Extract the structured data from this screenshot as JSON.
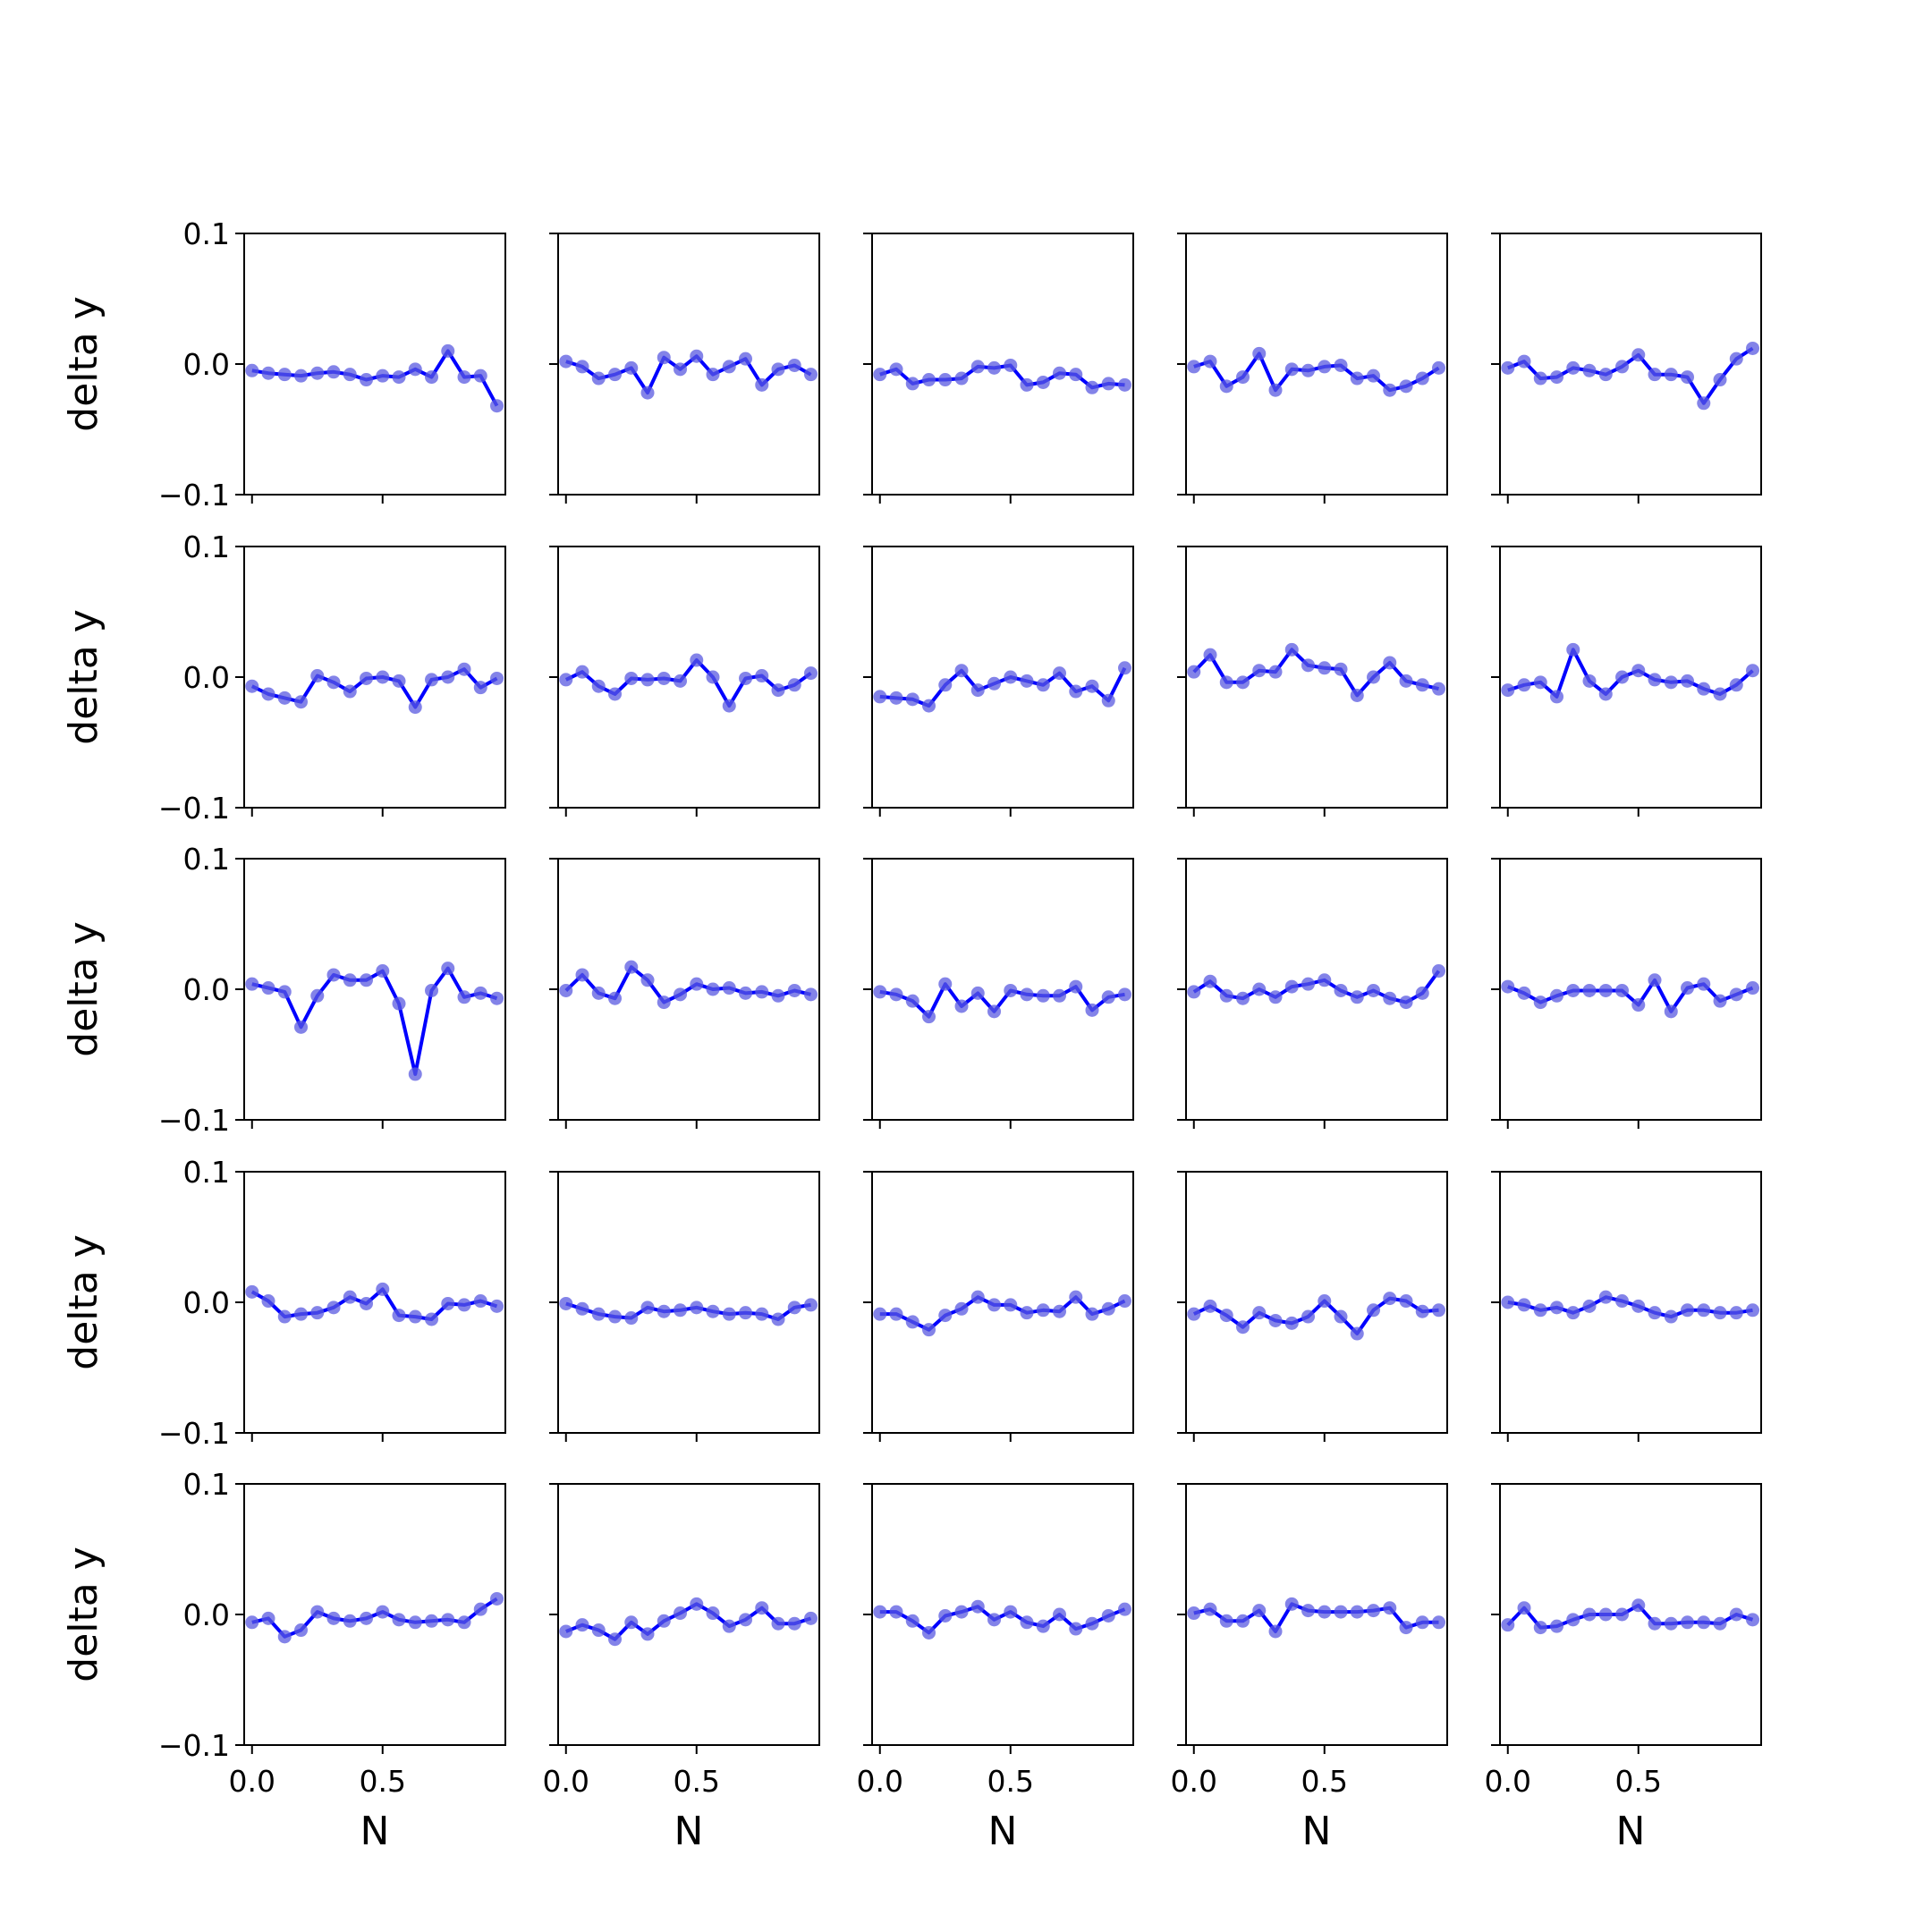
{
  "chart_data": {
    "type": "line",
    "layout": {
      "rows": 5,
      "cols": 5,
      "sharex": true,
      "sharey": true
    },
    "xlabel": "N",
    "ylabel": "delta y",
    "xlim": [
      -0.03,
      0.97
    ],
    "ylim": [
      -0.1,
      0.1
    ],
    "xticks": [
      0.0,
      0.5
    ],
    "xtick_labels": [
      "0.0",
      "0.5"
    ],
    "yticks": [
      -0.1,
      0.0,
      0.1
    ],
    "ytick_labels": [
      "−0.1",
      "0.0",
      "0.1"
    ],
    "x": [
      0.0,
      0.0625,
      0.125,
      0.1875,
      0.25,
      0.3125,
      0.375,
      0.4375,
      0.5,
      0.5625,
      0.625,
      0.6875,
      0.75,
      0.8125,
      0.875,
      0.9375
    ],
    "line_color": "#0000ff",
    "marker_color": "#5a5ae0",
    "panels": [
      [
        -0.005,
        -0.007,
        -0.008,
        -0.009,
        -0.007,
        -0.006,
        -0.008,
        -0.012,
        -0.009,
        -0.01,
        -0.004,
        -0.01,
        0.01,
        -0.01,
        -0.009,
        -0.032
      ],
      [
        0.002,
        -0.002,
        -0.011,
        -0.008,
        -0.003,
        -0.022,
        0.005,
        -0.004,
        0.006,
        -0.008,
        -0.002,
        0.004,
        -0.016,
        -0.004,
        -0.001,
        -0.008
      ],
      [
        -0.008,
        -0.004,
        -0.015,
        -0.012,
        -0.012,
        -0.011,
        -0.002,
        -0.003,
        -0.001,
        -0.016,
        -0.014,
        -0.007,
        -0.008,
        -0.018,
        -0.015,
        -0.016
      ],
      [
        -0.002,
        0.002,
        -0.017,
        -0.01,
        0.008,
        -0.02,
        -0.004,
        -0.005,
        -0.002,
        -0.001,
        -0.011,
        -0.009,
        -0.02,
        -0.017,
        -0.011,
        -0.003
      ],
      [
        -0.003,
        0.002,
        -0.011,
        -0.01,
        -0.003,
        -0.005,
        -0.008,
        -0.002,
        0.007,
        -0.008,
        -0.008,
        -0.01,
        -0.03,
        -0.012,
        0.004,
        0.012
      ],
      [
        -0.007,
        -0.013,
        -0.016,
        -0.019,
        0.001,
        -0.004,
        -0.011,
        -0.001,
        0.0,
        -0.003,
        -0.023,
        -0.002,
        0.0,
        0.006,
        -0.008,
        -0.001
      ],
      [
        -0.002,
        0.004,
        -0.007,
        -0.013,
        -0.001,
        -0.002,
        -0.001,
        -0.003,
        0.013,
        0.0,
        -0.022,
        -0.001,
        0.001,
        -0.01,
        -0.006,
        0.003
      ],
      [
        -0.015,
        -0.016,
        -0.017,
        -0.022,
        -0.006,
        0.005,
        -0.01,
        -0.005,
        0.0,
        -0.003,
        -0.006,
        0.003,
        -0.011,
        -0.007,
        -0.018,
        0.007
      ],
      [
        0.004,
        0.017,
        -0.004,
        -0.004,
        0.005,
        0.004,
        0.021,
        0.009,
        0.007,
        0.006,
        -0.014,
        0.0,
        0.011,
        -0.003,
        -0.006,
        -0.009
      ],
      [
        -0.01,
        -0.006,
        -0.004,
        -0.015,
        0.021,
        -0.003,
        -0.013,
        0.0,
        0.005,
        -0.002,
        -0.004,
        -0.003,
        -0.009,
        -0.013,
        -0.006,
        0.005
      ],
      [
        0.004,
        0.001,
        -0.002,
        -0.029,
        -0.005,
        0.011,
        0.007,
        0.007,
        0.014,
        -0.011,
        -0.065,
        -0.001,
        0.016,
        -0.006,
        -0.003,
        -0.007
      ],
      [
        -0.001,
        0.011,
        -0.003,
        -0.007,
        0.017,
        0.007,
        -0.01,
        -0.004,
        0.004,
        0.0,
        0.001,
        -0.003,
        -0.002,
        -0.005,
        -0.001,
        -0.004
      ],
      [
        -0.002,
        -0.004,
        -0.009,
        -0.021,
        0.004,
        -0.013,
        -0.003,
        -0.017,
        -0.001,
        -0.004,
        -0.005,
        -0.005,
        0.002,
        -0.016,
        -0.006,
        -0.004
      ],
      [
        -0.002,
        0.006,
        -0.005,
        -0.007,
        0.0,
        -0.006,
        0.002,
        0.004,
        0.007,
        -0.001,
        -0.006,
        -0.001,
        -0.007,
        -0.01,
        -0.003,
        0.014
      ],
      [
        0.002,
        -0.003,
        -0.01,
        -0.005,
        -0.001,
        -0.001,
        -0.001,
        -0.001,
        -0.012,
        0.007,
        -0.017,
        0.001,
        0.004,
        -0.009,
        -0.004,
        0.001
      ],
      [
        0.008,
        0.001,
        -0.011,
        -0.009,
        -0.008,
        -0.004,
        0.004,
        -0.001,
        0.01,
        -0.01,
        -0.011,
        -0.013,
        -0.001,
        -0.002,
        0.001,
        -0.003
      ],
      [
        -0.001,
        -0.005,
        -0.009,
        -0.011,
        -0.012,
        -0.004,
        -0.007,
        -0.006,
        -0.004,
        -0.007,
        -0.009,
        -0.008,
        -0.009,
        -0.013,
        -0.004,
        -0.002
      ],
      [
        -0.009,
        -0.009,
        -0.015,
        -0.021,
        -0.01,
        -0.005,
        0.004,
        -0.002,
        -0.002,
        -0.008,
        -0.006,
        -0.007,
        0.004,
        -0.009,
        -0.005,
        0.001
      ],
      [
        -0.009,
        -0.003,
        -0.01,
        -0.019,
        -0.008,
        -0.014,
        -0.016,
        -0.011,
        0.001,
        -0.011,
        -0.024,
        -0.006,
        0.003,
        0.001,
        -0.007,
        -0.006
      ],
      [
        0.0,
        -0.002,
        -0.006,
        -0.004,
        -0.008,
        -0.003,
        0.004,
        0.001,
        -0.003,
        -0.008,
        -0.011,
        -0.006,
        -0.006,
        -0.008,
        -0.008,
        -0.006
      ]
    ]
  },
  "panels_row5": [
    [
      -0.006,
      -0.003,
      -0.017,
      -0.012,
      0.002,
      -0.003,
      -0.005,
      -0.003,
      0.002,
      -0.004,
      -0.006,
      -0.005,
      -0.004,
      -0.006,
      0.004,
      0.012
    ],
    [
      -0.013,
      -0.008,
      -0.012,
      -0.019,
      -0.006,
      -0.015,
      -0.005,
      0.001,
      0.008,
      0.001,
      -0.009,
      -0.004,
      0.005,
      -0.007,
      -0.007,
      -0.003
    ],
    [
      0.002,
      0.002,
      -0.005,
      -0.014,
      -0.001,
      0.002,
      0.006,
      -0.004,
      0.002,
      -0.006,
      -0.009,
      0.0,
      -0.011,
      -0.007,
      -0.001,
      0.004
    ],
    [
      0.001,
      0.004,
      -0.005,
      -0.005,
      0.003,
      -0.013,
      0.008,
      0.003,
      0.002,
      0.002,
      0.002,
      0.003,
      0.005,
      -0.01,
      -0.006,
      -0.006
    ],
    [
      -0.008,
      0.005,
      -0.01,
      -0.009,
      -0.004,
      0.0,
      0.0,
      0.0,
      0.007,
      -0.007,
      -0.007,
      -0.006,
      -0.006,
      -0.007,
      0.0,
      -0.004
    ]
  ]
}
